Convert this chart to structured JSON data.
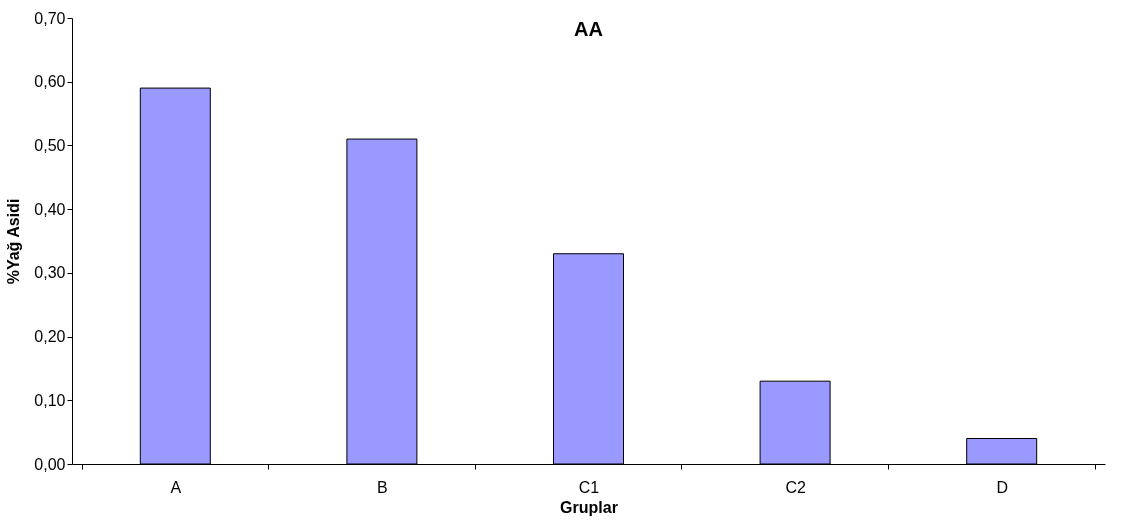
{
  "chart_data": {
    "type": "bar",
    "title": "AA",
    "xlabel": "Gruplar",
    "ylabel": "%Yağ Asidi",
    "categories": [
      "A",
      "B",
      "C1",
      "C2",
      "D"
    ],
    "values": [
      0.59,
      0.51,
      0.33,
      0.13,
      0.04
    ],
    "color": "#9999ff",
    "ylim": [
      0,
      0.7
    ],
    "yticks": [
      {
        "value": 0,
        "label": "0,00"
      },
      {
        "value": 0.1,
        "label": "0,10"
      },
      {
        "value": 0.2,
        "label": "0,20"
      },
      {
        "value": 0.3,
        "label": "0,30"
      },
      {
        "value": 0.4,
        "label": "0,40"
      },
      {
        "value": 0.5,
        "label": "0,50"
      },
      {
        "value": 0.6,
        "label": "0,60"
      },
      {
        "value": 0.7,
        "label": "0,70"
      }
    ],
    "grid": false
  }
}
